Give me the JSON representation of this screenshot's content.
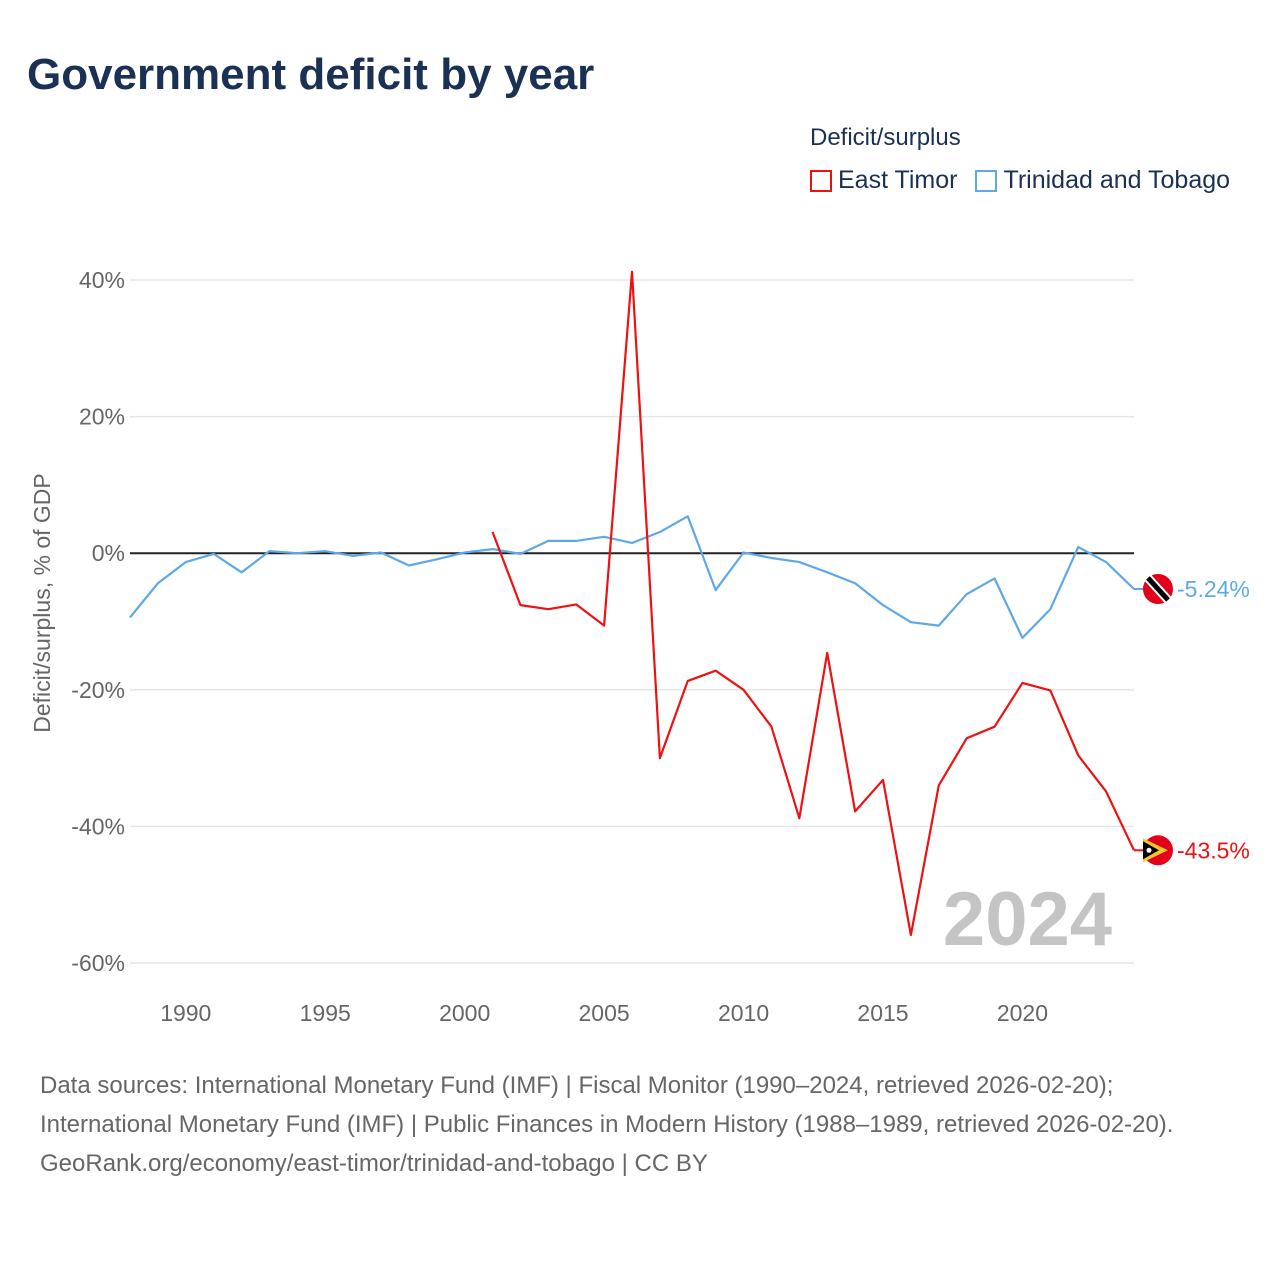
{
  "title": "Government deficit by year",
  "legend": {
    "title": "Deficit/surplus",
    "items": [
      {
        "label": "East Timor",
        "color": "#ee1111"
      },
      {
        "label": "Trinidad and Tobago",
        "color": "#5ea8ea"
      }
    ]
  },
  "watermark_year": "2024",
  "source_lines": [
    "Data sources: International Monetary Fund (IMF) | Fiscal Monitor (1990–2024, retrieved 2026-02-20); International Monetary Fund (IMF) | Public Finances in Modern History (1988–1989, retrieved 2026-02-20).",
    "GeoRank.org/economy/east-timor/trinidad-and-tobago | CC BY"
  ],
  "chart_data": {
    "type": "line",
    "title": "Government deficit by year",
    "xlabel": "",
    "ylabel": "Deficit/surplus, % of GDP",
    "xlim": [
      1988,
      2024
    ],
    "ylim": [
      -60,
      40
    ],
    "xticks": [
      1990,
      1995,
      2000,
      2005,
      2010,
      2015,
      2020
    ],
    "xtick_labels": [
      "1990",
      "1995",
      "2000",
      "2005",
      "2010",
      "2015",
      "2020"
    ],
    "yticks": [
      40,
      20,
      0,
      -20,
      -40,
      -60
    ],
    "ytick_labels": [
      "40%",
      "20%",
      "0%",
      "-20%",
      "-40%",
      "-60%"
    ],
    "grid": true,
    "legend_position": "top-right",
    "series": [
      {
        "name": "Trinidad and Tobago",
        "color": "#5ea8ea",
        "end_label": "-5.24%",
        "x": [
          1988,
          1989,
          1990,
          1991,
          1992,
          1993,
          1994,
          1995,
          1996,
          1997,
          1998,
          1999,
          2000,
          2001,
          2002,
          2003,
          2004,
          2005,
          2006,
          2007,
          2008,
          2009,
          2010,
          2011,
          2012,
          2013,
          2014,
          2015,
          2016,
          2017,
          2018,
          2019,
          2020,
          2021,
          2022,
          2023,
          2024
        ],
        "values": [
          -9.4,
          -4.4,
          -1.3,
          -0.1,
          -2.8,
          0.3,
          0,
          0.3,
          -0.4,
          0.1,
          -1.8,
          -0.9,
          0.1,
          0.6,
          -0.1,
          1.8,
          1.8,
          2.4,
          1.5,
          3.1,
          5.4,
          -5.4,
          0.1,
          -0.7,
          -1.3,
          -2.8,
          -4.4,
          -7.6,
          -10.1,
          -10.6,
          -6.0,
          -3.7,
          -12.4,
          -8.2,
          0.9,
          -1.3,
          -5.24
        ]
      },
      {
        "name": "East Timor",
        "color": "#ee1111",
        "end_label": "-43.5%",
        "x": [
          2001,
          2002,
          2003,
          2004,
          2005,
          2006,
          2007,
          2008,
          2009,
          2010,
          2011,
          2012,
          2013,
          2014,
          2015,
          2016,
          2017,
          2018,
          2019,
          2020,
          2021,
          2022,
          2023,
          2024
        ],
        "values": [
          3.1,
          -7.6,
          -8.2,
          -7.5,
          -10.6,
          41.2,
          -30.0,
          -18.7,
          -17.2,
          -20.0,
          -25.4,
          -38.8,
          -14.6,
          -37.8,
          -33.2,
          -55.9,
          -34.0,
          -27.1,
          -25.4,
          -19.0,
          -20.1,
          -29.6,
          -34.9,
          -43.5
        ]
      }
    ]
  }
}
